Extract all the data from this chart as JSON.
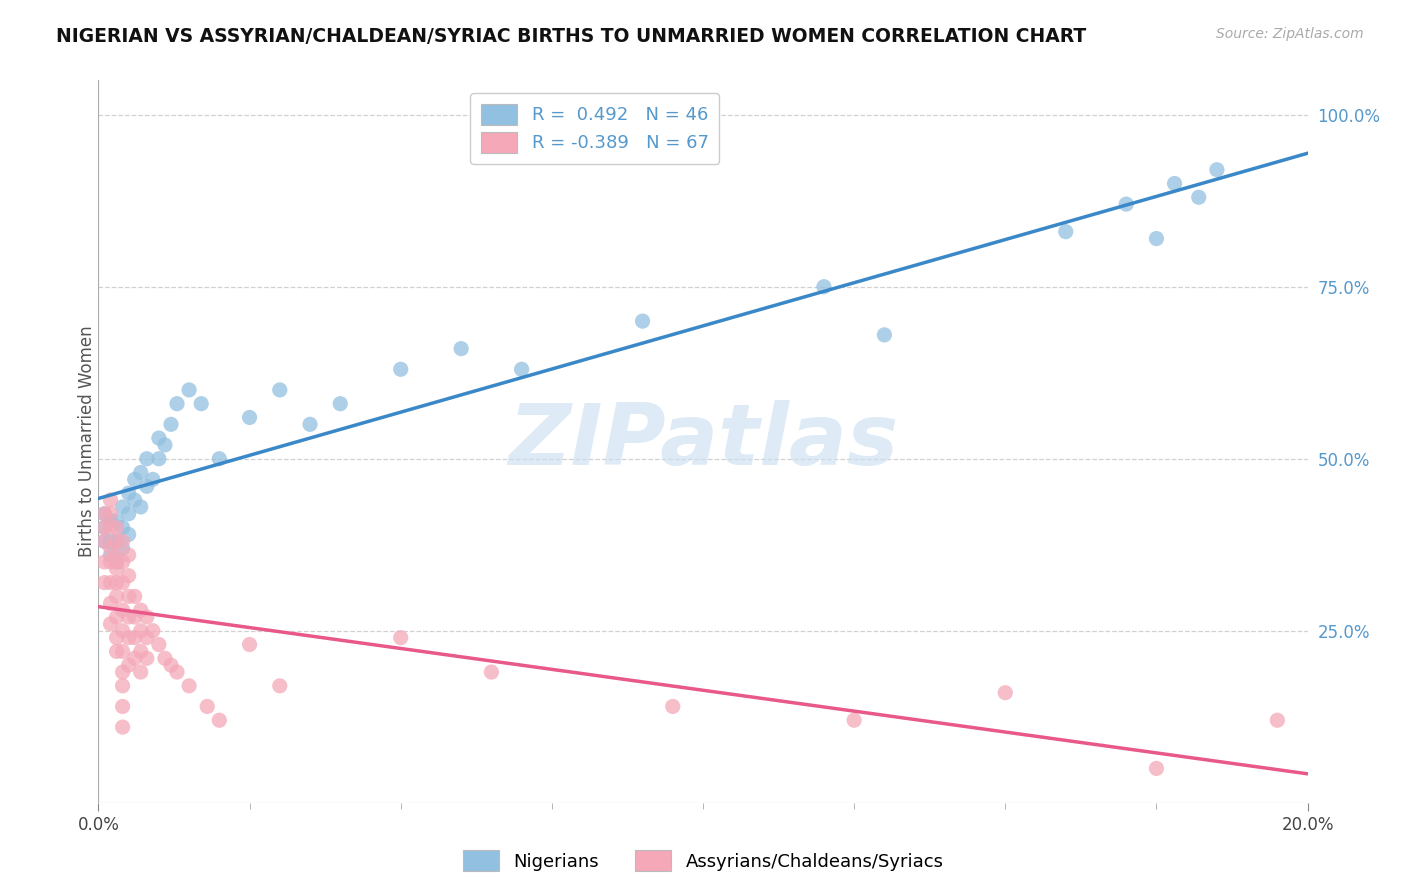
{
  "title": "NIGERIAN VS ASSYRIAN/CHALDEAN/SYRIAC BIRTHS TO UNMARRIED WOMEN CORRELATION CHART",
  "source_text": "Source: ZipAtlas.com",
  "ylabel": "Births to Unmarried Women",
  "legend_entries": [
    {
      "label": "Nigerians",
      "R": "0.492",
      "N": "46",
      "color": "#a8c8e8"
    },
    {
      "label": "Assyrians/Chaldeans/Syriacs",
      "R": "-0.389",
      "N": "67",
      "color": "#f4a8b8"
    }
  ],
  "watermark": "ZIPatlas",
  "blue_scatter": "#92c0e0",
  "pink_scatter": "#f4a8b8",
  "blue_line": "#3a88c8",
  "pink_line": "#e85888",
  "nigerian_x": [
    0.001,
    0.001,
    0.001,
    0.002,
    0.002,
    0.002,
    0.003,
    0.003,
    0.003,
    0.004,
    0.004,
    0.004,
    0.005,
    0.005,
    0.005,
    0.006,
    0.006,
    0.007,
    0.007,
    0.008,
    0.008,
    0.009,
    0.01,
    0.01,
    0.011,
    0.012,
    0.013,
    0.015,
    0.017,
    0.02,
    0.025,
    0.03,
    0.035,
    0.04,
    0.05,
    0.06,
    0.07,
    0.09,
    0.12,
    0.13,
    0.16,
    0.17,
    0.175,
    0.178,
    0.182,
    0.185
  ],
  "nigerian_y": [
    0.38,
    0.4,
    0.42,
    0.36,
    0.38,
    0.41,
    0.35,
    0.38,
    0.41,
    0.37,
    0.4,
    0.43,
    0.39,
    0.42,
    0.45,
    0.44,
    0.47,
    0.43,
    0.48,
    0.46,
    0.5,
    0.47,
    0.5,
    0.53,
    0.52,
    0.55,
    0.58,
    0.6,
    0.58,
    0.5,
    0.56,
    0.6,
    0.55,
    0.58,
    0.63,
    0.66,
    0.63,
    0.7,
    0.75,
    0.68,
    0.83,
    0.87,
    0.82,
    0.9,
    0.88,
    0.92
  ],
  "assyrian_x": [
    0.001,
    0.001,
    0.001,
    0.001,
    0.001,
    0.002,
    0.002,
    0.002,
    0.002,
    0.002,
    0.002,
    0.002,
    0.002,
    0.003,
    0.003,
    0.003,
    0.003,
    0.003,
    0.003,
    0.003,
    0.003,
    0.003,
    0.003,
    0.004,
    0.004,
    0.004,
    0.004,
    0.004,
    0.004,
    0.004,
    0.004,
    0.004,
    0.004,
    0.005,
    0.005,
    0.005,
    0.005,
    0.005,
    0.005,
    0.006,
    0.006,
    0.006,
    0.006,
    0.007,
    0.007,
    0.007,
    0.007,
    0.008,
    0.008,
    0.008,
    0.009,
    0.01,
    0.011,
    0.012,
    0.013,
    0.015,
    0.018,
    0.02,
    0.025,
    0.03,
    0.05,
    0.065,
    0.095,
    0.125,
    0.15,
    0.175,
    0.195
  ],
  "assyrian_y": [
    0.38,
    0.4,
    0.42,
    0.35,
    0.32,
    0.35,
    0.37,
    0.4,
    0.42,
    0.44,
    0.32,
    0.29,
    0.26,
    0.4,
    0.38,
    0.35,
    0.32,
    0.3,
    0.27,
    0.24,
    0.22,
    0.36,
    0.34,
    0.38,
    0.35,
    0.32,
    0.28,
    0.25,
    0.22,
    0.19,
    0.17,
    0.14,
    0.11,
    0.36,
    0.33,
    0.3,
    0.27,
    0.24,
    0.2,
    0.3,
    0.27,
    0.24,
    0.21,
    0.28,
    0.25,
    0.22,
    0.19,
    0.27,
    0.24,
    0.21,
    0.25,
    0.23,
    0.21,
    0.2,
    0.19,
    0.17,
    0.14,
    0.12,
    0.23,
    0.17,
    0.24,
    0.19,
    0.14,
    0.12,
    0.16,
    0.05,
    0.12
  ],
  "xlim": [
    0.0,
    0.2
  ],
  "ylim": [
    0.0,
    1.05
  ],
  "background_color": "#ffffff",
  "grid_color": "#cccccc",
  "right_tick_color": "#5599cc"
}
